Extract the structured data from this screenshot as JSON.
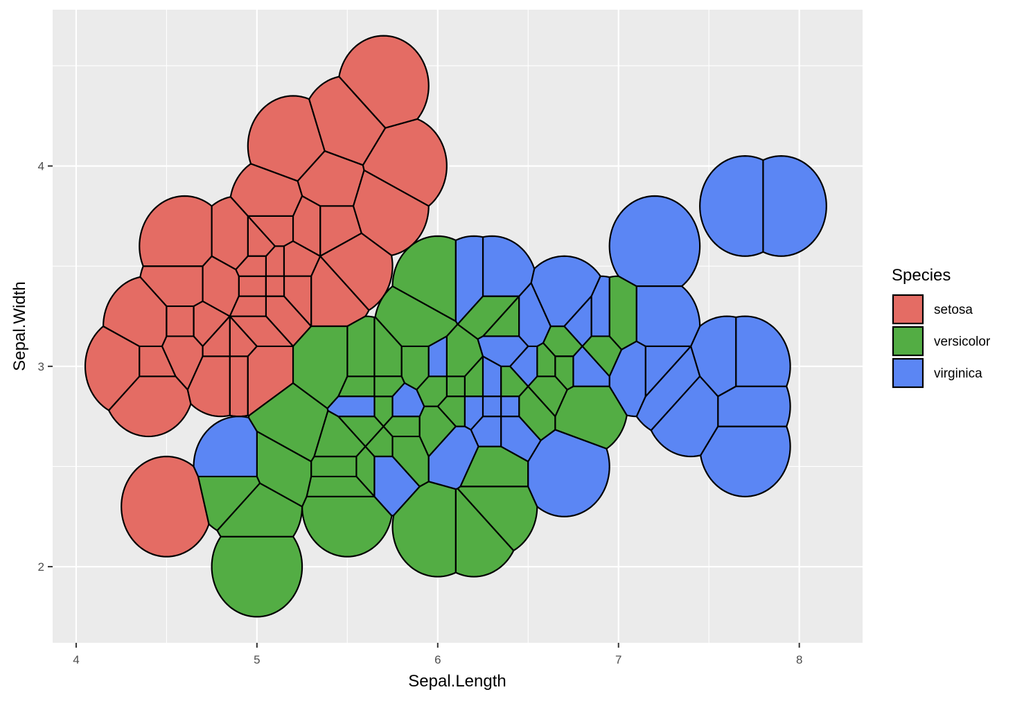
{
  "chart_data": {
    "type": "scatter",
    "subtype": "voronoi-tiles",
    "title": "",
    "xlabel": "Sepal.Length",
    "ylabel": "Sepal.Width",
    "xlim": [
      3.87,
      8.35
    ],
    "ylim": [
      1.62,
      4.78
    ],
    "x_ticks": [
      4,
      5,
      6,
      7,
      8
    ],
    "y_ticks": [
      2,
      3,
      4
    ],
    "grid": true,
    "tile_radius": 0.25,
    "legend": {
      "title": "Species",
      "position": "right",
      "entries": [
        {
          "name": "setosa",
          "color": "#E46C64"
        },
        {
          "name": "versicolor",
          "color": "#53AD44"
        },
        {
          "name": "virginica",
          "color": "#5B86F4"
        }
      ]
    },
    "series": [
      {
        "name": "setosa",
        "color": "#E46C64",
        "x": [
          5.1,
          4.9,
          4.7,
          4.6,
          5.0,
          5.4,
          4.6,
          5.0,
          4.4,
          4.9,
          5.4,
          4.8,
          4.8,
          4.3,
          5.8,
          5.7,
          5.4,
          5.1,
          5.7,
          5.1,
          5.4,
          5.1,
          4.6,
          5.1,
          4.8,
          5.0,
          5.0,
          5.2,
          5.2,
          4.7,
          4.8,
          5.4,
          5.2,
          5.5,
          4.9,
          5.0,
          5.5,
          4.9,
          4.4,
          5.1,
          5.0,
          4.5,
          4.4,
          5.0,
          5.1,
          4.8,
          5.1,
          4.6,
          5.3,
          5.0
        ],
        "y": [
          3.5,
          3.0,
          3.2,
          3.1,
          3.6,
          3.9,
          3.4,
          3.4,
          2.9,
          3.1,
          3.7,
          3.4,
          3.0,
          3.0,
          4.0,
          4.4,
          3.9,
          3.5,
          3.8,
          3.8,
          3.4,
          3.7,
          3.6,
          3.3,
          3.4,
          3.0,
          3.4,
          3.5,
          3.4,
          3.2,
          3.1,
          3.4,
          4.1,
          4.2,
          3.1,
          3.2,
          3.5,
          3.6,
          3.0,
          3.4,
          3.5,
          2.3,
          3.2,
          3.5,
          3.8,
          3.0,
          3.8,
          3.2,
          3.7,
          3.3
        ]
      },
      {
        "name": "versicolor",
        "color": "#53AD44",
        "x": [
          7.0,
          6.4,
          6.9,
          5.5,
          6.5,
          5.7,
          6.3,
          4.9,
          6.6,
          5.2,
          5.0,
          5.9,
          6.0,
          6.1,
          5.6,
          6.7,
          5.6,
          5.8,
          6.2,
          5.6,
          5.9,
          6.1,
          6.3,
          6.1,
          6.4,
          6.6,
          6.8,
          6.7,
          6.0,
          5.7,
          5.5,
          5.5,
          5.8,
          6.0,
          5.4,
          6.0,
          6.7,
          6.3,
          5.6,
          5.5,
          5.5,
          6.1,
          5.8,
          5.0,
          5.6,
          5.7,
          5.7,
          6.2,
          5.1,
          5.7
        ],
        "y": [
          3.2,
          3.2,
          3.1,
          2.3,
          2.8,
          2.8,
          3.3,
          2.4,
          2.9,
          2.7,
          2.0,
          3.0,
          2.2,
          2.9,
          2.9,
          3.1,
          3.0,
          2.7,
          2.2,
          2.5,
          3.2,
          2.8,
          2.5,
          2.8,
          2.9,
          3.0,
          2.8,
          3.0,
          2.9,
          2.6,
          2.4,
          2.4,
          2.7,
          2.7,
          3.0,
          3.4,
          3.1,
          2.3,
          3.0,
          2.5,
          2.6,
          3.0,
          2.6,
          2.3,
          2.7,
          3.0,
          2.9,
          2.9,
          2.5,
          2.8
        ]
      },
      {
        "name": "virginica",
        "color": "#5B86F4",
        "x": [
          6.3,
          5.8,
          7.1,
          6.3,
          6.5,
          7.6,
          4.9,
          7.3,
          6.7,
          7.2,
          6.5,
          6.4,
          6.8,
          5.7,
          5.8,
          6.4,
          6.5,
          7.7,
          7.7,
          6.0,
          6.9,
          5.6,
          7.7,
          6.3,
          6.7,
          7.2,
          6.2,
          6.1,
          6.4,
          7.2,
          7.4,
          7.9,
          6.4,
          6.3,
          6.1,
          7.7,
          6.3,
          6.4,
          6.0,
          6.9,
          6.7,
          6.9,
          5.8,
          6.8,
          6.7,
          6.7,
          6.3,
          6.5,
          6.2,
          5.9
        ],
        "y": [
          3.3,
          2.7,
          3.0,
          2.9,
          3.0,
          3.0,
          2.5,
          2.9,
          2.5,
          3.6,
          3.2,
          2.7,
          3.0,
          2.5,
          2.8,
          3.2,
          3.0,
          3.8,
          2.6,
          2.2,
          3.2,
          2.8,
          2.8,
          2.7,
          3.3,
          3.2,
          2.8,
          3.0,
          2.8,
          3.0,
          2.8,
          3.8,
          2.8,
          2.8,
          2.6,
          3.0,
          3.4,
          3.1,
          3.0,
          3.1,
          3.1,
          3.1,
          2.7,
          3.2,
          3.3,
          3.0,
          2.5,
          3.0,
          3.4,
          3.0
        ]
      }
    ]
  }
}
